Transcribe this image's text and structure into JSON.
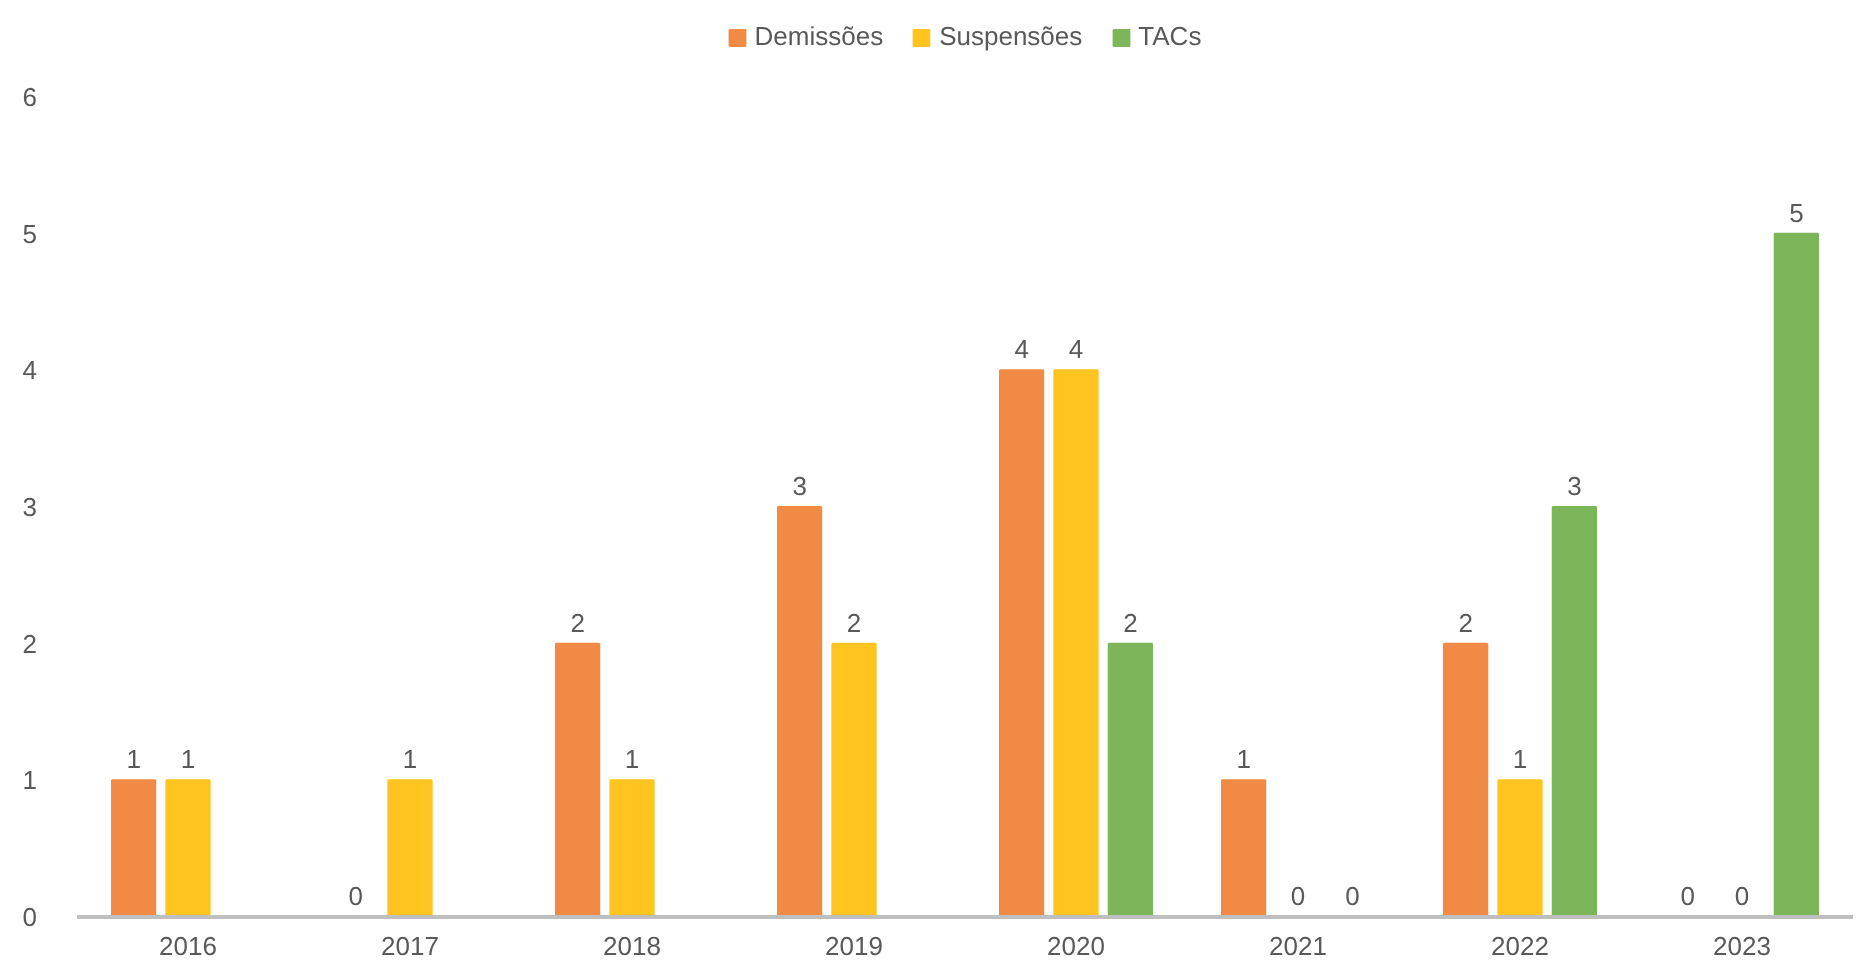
{
  "chart_data": {
    "type": "bar",
    "categories": [
      "2016",
      "2017",
      "2018",
      "2019",
      "2020",
      "2021",
      "2022",
      "2023"
    ],
    "series": [
      {
        "name": "Demissões",
        "color": "#f08a45",
        "values": [
          1,
          0,
          2,
          3,
          4,
          1,
          2,
          0
        ]
      },
      {
        "name": "Suspensões",
        "color": "#ffc41f",
        "values": [
          1,
          1,
          1,
          2,
          4,
          0,
          1,
          0
        ]
      },
      {
        "name": "TACs",
        "color": "#7db55a",
        "values": [
          null,
          null,
          null,
          null,
          2,
          0,
          3,
          5
        ]
      }
    ],
    "ylim": [
      0,
      6
    ],
    "yticks": [
      0,
      1,
      2,
      3,
      4,
      5,
      6
    ],
    "grid": false,
    "legend": "top",
    "data_labels": true
  }
}
